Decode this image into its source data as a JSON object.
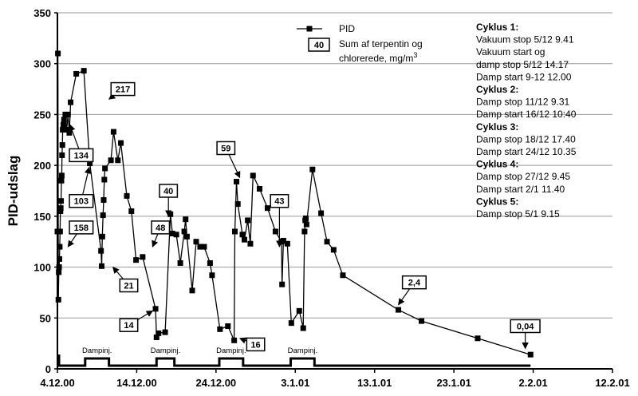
{
  "chart_data": {
    "type": "line",
    "title": "",
    "ylabel": "PID-udslag",
    "xlabel": "",
    "ylim": [
      0,
      350
    ],
    "yticks": [
      "0",
      "50",
      "100",
      "150",
      "200",
      "250",
      "300",
      "350"
    ],
    "xlim": [
      "2012-12-04",
      "2013-02-12"
    ],
    "xticks": [
      {
        "date": "2012-12-04",
        "label": "4.12.00"
      },
      {
        "date": "2012-12-14",
        "label": "14.12.00"
      },
      {
        "date": "2012-12-24",
        "label": "24.12.00"
      },
      {
        "date": "2013-01-03",
        "label": "3.1.01"
      },
      {
        "date": "2013-01-13",
        "label": "13.1.01"
      },
      {
        "date": "2013-01-23",
        "label": "23.1.01"
      },
      {
        "date": "2013-02-02",
        "label": "2.2.01"
      },
      {
        "date": "2013-02-12",
        "label": "12.2.01"
      }
    ],
    "grid": "horizontal",
    "legend": {
      "position": "top-center",
      "series_label": "PID",
      "box_sample": "40",
      "box_label_line1": "Sum af terpentin og",
      "box_label_line2": "chlorerede, mg/m",
      "box_label_sup": "3"
    },
    "series": [
      {
        "name": "PID",
        "points": [
          [
            "2012-12-04T00:00",
            135
          ],
          [
            "2012-12-04T01:30",
            310
          ],
          [
            "2012-12-04T03:00",
            68
          ],
          [
            "2012-12-04T04:00",
            95
          ],
          [
            "2012-12-04T05:00",
            100
          ],
          [
            "2012-12-04T06:00",
            108
          ],
          [
            "2012-12-04T07:00",
            120
          ],
          [
            "2012-12-04T08:00",
            135
          ],
          [
            "2012-12-04T09:00",
            155
          ],
          [
            "2012-12-04T10:00",
            158
          ],
          [
            "2012-12-04T11:00",
            165
          ],
          [
            "2012-12-04T12:00",
            185
          ],
          [
            "2012-12-04T13:00",
            190
          ],
          [
            "2012-12-04T14:00",
            210
          ],
          [
            "2012-12-04T15:00",
            220
          ],
          [
            "2012-12-04T16:00",
            235
          ],
          [
            "2012-12-04T18:00",
            240
          ],
          [
            "2012-12-04T20:00",
            245
          ],
          [
            "2012-12-05T00:00",
            250
          ],
          [
            "2012-12-05T04:00",
            235
          ],
          [
            "2012-12-05T08:00",
            250
          ],
          [
            "2012-12-05T12:00",
            232
          ],
          [
            "2012-12-05T16:00",
            262
          ],
          [
            "2012-12-06T09:00",
            290
          ],
          [
            "2012-12-07T08:00",
            293
          ],
          [
            "2012-12-08T02:00",
            202
          ],
          [
            "2012-12-09T12:00",
            116
          ],
          [
            "2012-12-09T14:00",
            101
          ],
          [
            "2012-12-09T16:00",
            130
          ],
          [
            "2012-12-09T18:00",
            151
          ],
          [
            "2012-12-09T20:00",
            166
          ],
          [
            "2012-12-09T22:00",
            186
          ],
          [
            "2012-12-10T00:00",
            197
          ],
          [
            "2012-12-10T18:00",
            205
          ],
          [
            "2012-12-11T02:00",
            233
          ],
          [
            "2012-12-11T15:00",
            205
          ],
          [
            "2012-12-12T00:00",
            222
          ],
          [
            "2012-12-12T18:00",
            170
          ],
          [
            "2012-12-13T08:00",
            155
          ],
          [
            "2012-12-13T22:00",
            107
          ],
          [
            "2012-12-14T18:00",
            110
          ],
          [
            "2012-12-16T09:00",
            59
          ],
          [
            "2012-12-16T12:00",
            31
          ],
          [
            "2012-12-16T18:00",
            35
          ],
          [
            "2012-12-17T14:00",
            36
          ],
          [
            "2012-12-18T06:00",
            152
          ],
          [
            "2012-12-18T12:00",
            133
          ],
          [
            "2012-12-19T00:00",
            132
          ],
          [
            "2012-12-19T12:00",
            104
          ],
          [
            "2012-12-20T00:00",
            135
          ],
          [
            "2012-12-20T04:00",
            147
          ],
          [
            "2012-12-20T08:00",
            130
          ],
          [
            "2012-12-21T00:00",
            77
          ],
          [
            "2012-12-21T12:00",
            125
          ],
          [
            "2012-12-22T00:00",
            120
          ],
          [
            "2012-12-22T12:00",
            120
          ],
          [
            "2012-12-23T06:00",
            104
          ],
          [
            "2012-12-23T12:00",
            92
          ],
          [
            "2012-12-24T12:00",
            39
          ],
          [
            "2012-12-25T12:00",
            42
          ],
          [
            "2012-12-26T07:00",
            28
          ],
          [
            "2012-12-26T09:00",
            135
          ],
          [
            "2012-12-26T14:00",
            184
          ],
          [
            "2012-12-26T18:00",
            162
          ],
          [
            "2012-12-27T08:00",
            132
          ],
          [
            "2012-12-27T14:00",
            127
          ],
          [
            "2012-12-28T00:00",
            146
          ],
          [
            "2012-12-28T08:00",
            123
          ],
          [
            "2012-12-28T16:00",
            190
          ],
          [
            "2012-12-29T12:00",
            177
          ],
          [
            "2012-12-30T12:00",
            158
          ],
          [
            "2012-12-31T12:00",
            135
          ],
          [
            "2013-01-01T06:00",
            125
          ],
          [
            "2013-01-01T08:00",
            83
          ],
          [
            "2013-01-01T12:00",
            126
          ],
          [
            "2013-01-02T00:00",
            123
          ],
          [
            "2013-01-02T12:00",
            45
          ],
          [
            "2013-01-03T12:00",
            57
          ],
          [
            "2013-01-04T00:00",
            40
          ],
          [
            "2013-01-04T04:00",
            135
          ],
          [
            "2013-01-04T06:00",
            146
          ],
          [
            "2013-01-04T08:00",
            148
          ],
          [
            "2013-01-04T10:00",
            142
          ],
          [
            "2013-01-05T04:00",
            196
          ],
          [
            "2013-01-06T06:00",
            153
          ],
          [
            "2013-01-07T00:00",
            125
          ],
          [
            "2013-01-07T20:00",
            117
          ],
          [
            "2013-01-09T00:00",
            92
          ],
          [
            "2013-01-16T00:00",
            58
          ],
          [
            "2013-01-18T22:00",
            47
          ],
          [
            "2013-01-26T00:00",
            30
          ],
          [
            "2013-02-01T16:00",
            14
          ]
        ]
      }
    ],
    "data_labels": [
      {
        "text": "134",
        "box_center": [
          "2012-12-07T00:00",
          210
        ],
        "arrow_to": [
          "2012-12-05T14:00",
          240
        ]
      },
      {
        "text": "217",
        "box_center": [
          "2012-12-12T06:00",
          275
        ],
        "arrow_to": [
          "2012-12-10T12:00",
          265
        ]
      },
      {
        "text": "103",
        "box_center": [
          "2012-12-07T00:00",
          165
        ],
        "arrow_to": [
          "2012-12-08T00:00",
          198
        ]
      },
      {
        "text": "158",
        "box_center": [
          "2012-12-07T00:00",
          139
        ],
        "arrow_to": [
          "2012-12-05T08:00",
          120
        ]
      },
      {
        "text": "21",
        "box_center": [
          "2012-12-13T00:00",
          82
        ],
        "arrow_to": [
          "2012-12-11T00:00",
          100
        ]
      },
      {
        "text": "14",
        "box_center": [
          "2012-12-13T00:00",
          43
        ],
        "arrow_to": [
          "2012-12-16T00:00",
          57
        ]
      },
      {
        "text": "48",
        "box_center": [
          "2012-12-17T00:00",
          139
        ],
        "arrow_to": [
          "2012-12-16T00:00",
          120
        ]
      },
      {
        "text": "40",
        "box_center": [
          "2012-12-18T00:00",
          175
        ],
        "arrow_to": [
          "2012-12-18T00:00",
          150
        ]
      },
      {
        "text": "59",
        "box_center": [
          "2012-12-25T06:00",
          217
        ],
        "arrow_to": [
          "2012-12-27T00:00",
          188
        ]
      },
      {
        "text": "16",
        "box_center": [
          "2012-12-29T00:00",
          24
        ],
        "arrow_to": [
          "2012-12-27T00:00",
          30
        ]
      },
      {
        "text": "43",
        "box_center": [
          "2013-01-01T00:00",
          165
        ],
        "arrow_to": [
          "2013-01-01T00:00",
          120
        ]
      },
      {
        "text": "2,4",
        "box_center": [
          "2013-01-18T00:00",
          85
        ],
        "arrow_to": [
          "2013-01-16T00:00",
          63
        ]
      },
      {
        "text": "0,04",
        "box_center": [
          "2013-02-01T00:00",
          42
        ],
        "arrow_to": [
          "2013-02-01T00:00",
          20
        ]
      }
    ],
    "damp_injection": {
      "label": "Dampinj.",
      "periods": [
        [
          "2012-12-07T12:00",
          "2012-12-10T12:00"
        ],
        [
          "2012-12-16T12:00",
          "2012-12-18T18:00"
        ],
        [
          "2012-12-24T10:00",
          "2012-12-27T10:00"
        ],
        [
          "2013-01-02T10:00",
          "2013-01-05T10:00"
        ]
      ]
    },
    "cycles": [
      {
        "title": "Cyklus 1:",
        "lines": [
          "Vakuum stop 5/12 9.41",
          "Vakuum start og",
          "damp stop 5/12 14.17",
          "Damp start 9-12 12.00"
        ]
      },
      {
        "title": "Cyklus 2:",
        "lines": [
          "Damp stop 11/12 9.31",
          "Damp start 16/12 10:40"
        ]
      },
      {
        "title": "Cyklus 3:",
        "lines": [
          "Damp stop 18/12 17.40",
          "Damp start 24/12 10.35"
        ]
      },
      {
        "title": "Cyklus 4:",
        "lines": [
          "Damp stop 27/12 9.45",
          "Damp start 2/1 11.40"
        ]
      },
      {
        "title": "Cyklus 5:",
        "lines": [
          "Damp stop 5/1 9.15"
        ]
      }
    ]
  }
}
